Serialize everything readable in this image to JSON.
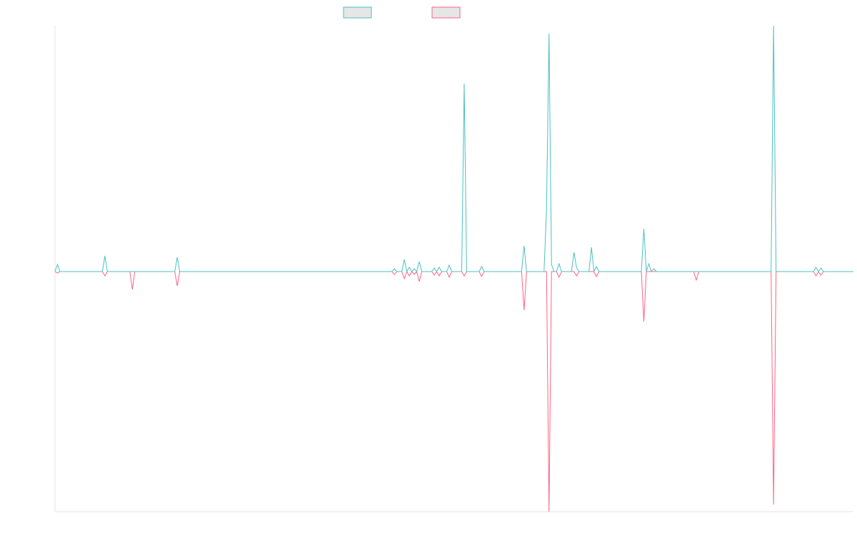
{
  "chart_data": {
    "type": "line",
    "x": [
      0,
      1,
      2,
      19,
      20,
      21,
      30,
      31,
      32,
      48,
      49,
      50,
      135,
      136,
      137,
      139,
      140,
      141,
      142,
      143,
      144,
      145,
      146,
      147,
      151,
      152,
      153,
      154,
      155,
      157,
      158,
      159,
      163,
      164,
      165,
      170,
      171,
      172,
      187,
      188,
      189,
      196,
      197,
      198,
      199,
      200,
      201,
      202,
      203,
      207,
      208,
      209,
      210,
      214,
      215,
      216,
      217,
      218,
      235,
      236,
      237,
      238,
      239,
      240,
      241,
      256,
      257,
      258,
      287,
      288,
      289,
      304,
      305,
      306,
      307,
      308,
      320
    ],
    "series": [
      {
        "color": "#4bc0c0",
        "values": [
          0,
          10,
          0,
          0,
          22,
          0,
          0,
          0,
          0,
          0,
          20,
          0,
          0,
          4,
          0,
          0,
          17,
          0,
          6,
          0,
          4,
          0,
          14,
          0,
          0,
          5,
          0,
          6,
          0,
          0,
          9,
          0,
          0,
          263,
          0,
          0,
          7,
          0,
          0,
          36,
          0,
          0,
          87,
          333,
          10,
          0,
          0,
          11,
          0,
          0,
          27,
          6,
          0,
          0,
          34,
          0,
          7,
          0,
          0,
          60,
          0,
          11,
          0,
          4,
          0,
          0,
          0,
          0,
          0,
          344,
          0,
          0,
          6,
          0,
          5,
          0,
          0
        ]
      },
      {
        "color": "#ff6384",
        "values": [
          0,
          -2,
          0,
          0,
          -6,
          0,
          0,
          -25,
          0,
          0,
          -20,
          0,
          0,
          -4,
          0,
          0,
          -10,
          0,
          -6,
          0,
          -4,
          0,
          -14,
          0,
          0,
          -5,
          0,
          -6,
          0,
          0,
          -8,
          0,
          0,
          -6,
          0,
          0,
          -7,
          0,
          0,
          -54,
          0,
          0,
          0,
          -336,
          0,
          0,
          0,
          -8,
          0,
          0,
          0,
          -6,
          0,
          0,
          0,
          0,
          -7,
          0,
          0,
          -70,
          0,
          0,
          0,
          0,
          0,
          0,
          -12,
          0,
          0,
          -326,
          0,
          0,
          -6,
          0,
          -5,
          0,
          0
        ]
      }
    ],
    "xlim": [
      0,
      320
    ],
    "ylim": [
      -336,
      344
    ]
  }
}
